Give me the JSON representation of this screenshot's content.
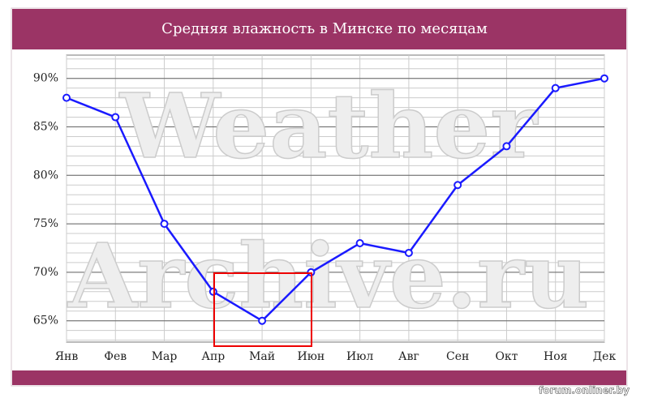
{
  "chart_data": {
    "type": "line",
    "title": "Средняя влажность в Минске по месяцам",
    "categories": [
      "Янв",
      "Фев",
      "Мар",
      "Апр",
      "Май",
      "Июн",
      "Июл",
      "Авг",
      "Сен",
      "Окт",
      "Ноя",
      "Дек"
    ],
    "series": [
      {
        "name": "Влажность",
        "color": "#1a1aff",
        "values": [
          88,
          86,
          75,
          68,
          65,
          70,
          73,
          72,
          79,
          83,
          89,
          90
        ]
      }
    ],
    "ylim": [
      62.8,
      92.4
    ],
    "yticks": [
      {
        "value": 65,
        "label": "65%"
      },
      {
        "value": 70,
        "label": "70%"
      },
      {
        "value": 75,
        "label": "75%"
      },
      {
        "value": 80,
        "label": "80%"
      },
      {
        "value": 85,
        "label": "85%"
      },
      {
        "value": 90,
        "label": "90%"
      }
    ],
    "grid": true,
    "watermark": [
      "Weather",
      "Archive.ru"
    ],
    "source": "forum.onliner.by"
  }
}
